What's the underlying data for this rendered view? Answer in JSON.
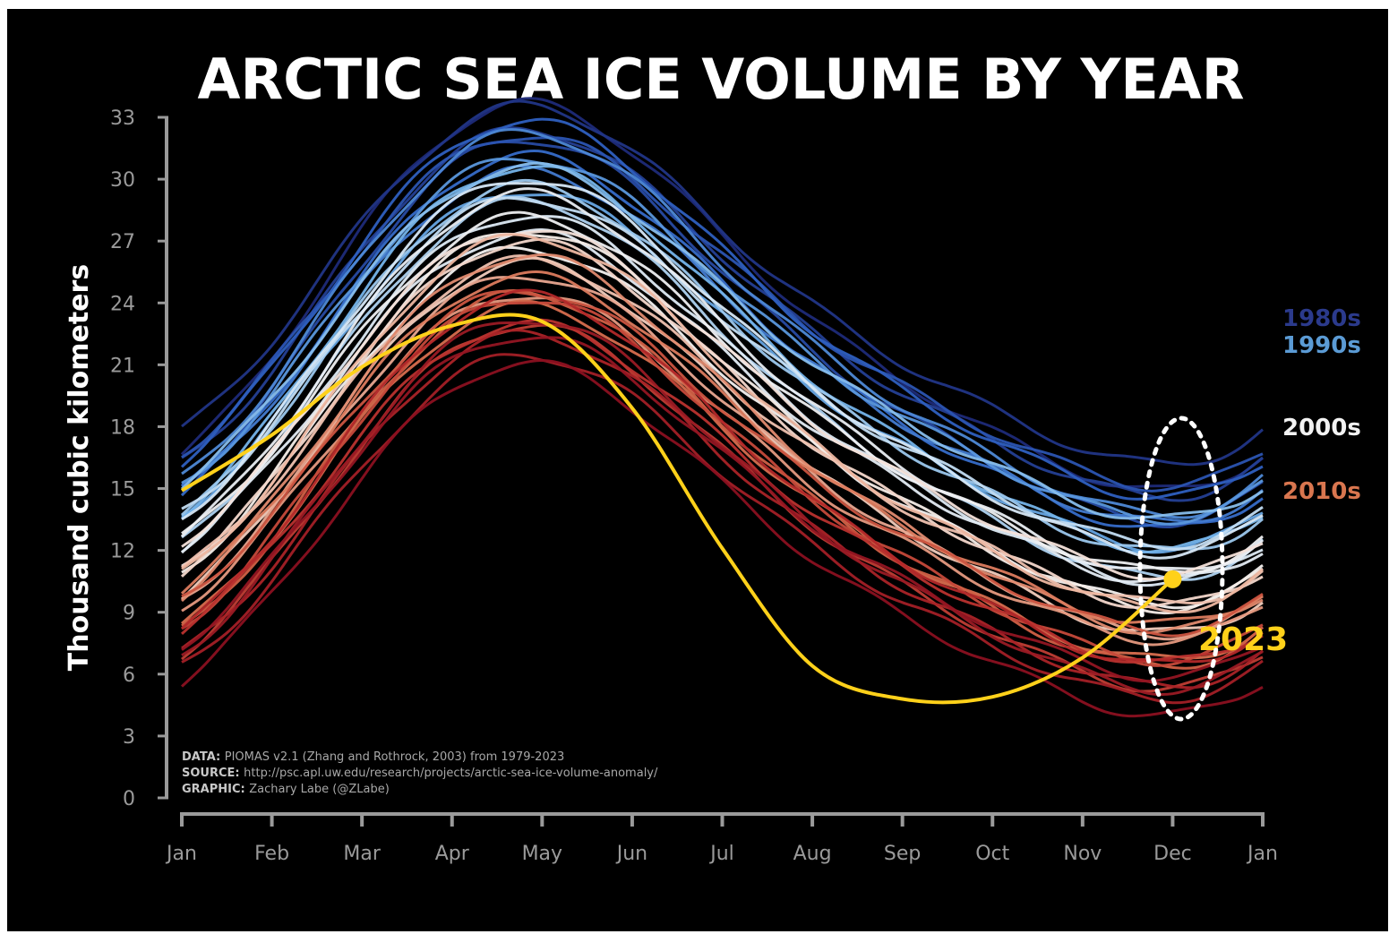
{
  "chart_data": {
    "type": "line",
    "title": "ARCTIC SEA ICE VOLUME BY YEAR",
    "ylabel": "Thousand cubic kilometers",
    "ylim": [
      0,
      33
    ],
    "yticks": [
      "0",
      "3",
      "6",
      "9",
      "12",
      "15",
      "18",
      "21",
      "24",
      "27",
      "30",
      "33"
    ],
    "xticks": [
      "Jan",
      "Feb",
      "Mar",
      "Apr",
      "May",
      "Jun",
      "Jul",
      "Aug",
      "Sep",
      "Oct",
      "Nov",
      "Dec",
      "Jan"
    ],
    "legend_placement": "right",
    "decades": [
      {
        "name": "1980s",
        "color": "#2b3a8c"
      },
      {
        "name": "1990s",
        "color": "#5b9bd5"
      },
      {
        "name": "2000s",
        "color": "#f2f2f2"
      },
      {
        "name": "2010s",
        "color": "#d9764f"
      }
    ],
    "highlight": {
      "name": "2023",
      "color": "#ffd11a",
      "values": [
        14.9,
        17.6,
        20.9,
        22.9,
        23.1,
        18.9,
        12.1,
        6.4,
        4.8,
        4.9,
        6.8,
        10.6
      ]
    },
    "credits": [
      {
        "key": "DATA:",
        "text": "PIOMAS v2.1 (Zhang and Rothrock, 2003) from 1979-2023"
      },
      {
        "key": "SOURCE:",
        "text": "http://psc.apl.uw.edu/research/projects/arctic-sea-ice-volume-anomaly/"
      },
      {
        "key": "GRAPHIC:",
        "text": "Zachary Labe (@ZLabe)"
      }
    ]
  }
}
